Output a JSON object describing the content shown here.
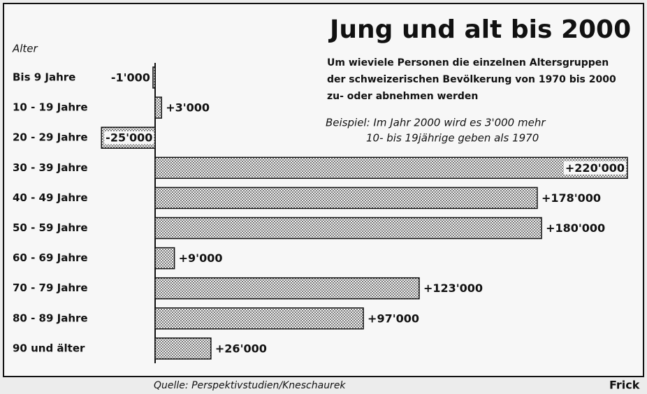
{
  "chart_data": {
    "type": "bar",
    "orientation": "horizontal",
    "title": "Jung und alt bis 2000",
    "subtitle": [
      "Um wieviele Personen die einzelnen Altersgruppen",
      "der schweizerischen Bevölkerung von 1970 bis 2000",
      "zu- oder abnehmen werden"
    ],
    "annotation": [
      "Beispiel: Im Jahr 2000 wird es 3'000 mehr",
      "10- bis 19jährige geben als 1970"
    ],
    "y_label": "Alter",
    "source": "Quelle: Perspektivstudien/Kneschaurek",
    "credit": "Frick",
    "categories": [
      "Bis 9 Jahre",
      "10 - 19 Jahre",
      "20 - 29 Jahre",
      "30 - 39 Jahre",
      "40 - 49 Jahre",
      "50 - 59 Jahre",
      "60 - 69 Jahre",
      "70 - 79 Jahre",
      "80 - 89 Jahre",
      "90 und älter"
    ],
    "values": [
      -1000,
      3000,
      -25000,
      220000,
      178000,
      180000,
      9000,
      123000,
      97000,
      26000
    ],
    "value_labels": [
      "-1'000",
      "+3'000",
      "-25'000",
      "+220'000",
      "+178'000",
      "+180'000",
      "+9'000",
      "+123'000",
      "+97'000",
      "+26'000"
    ],
    "color": "#222222"
  }
}
